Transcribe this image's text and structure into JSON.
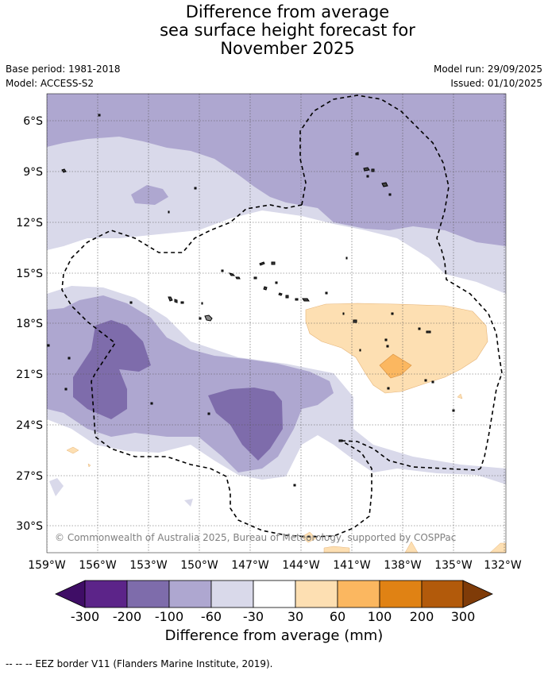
{
  "title": {
    "line1": "Difference from average",
    "line2": "sea surface height forecast for",
    "line3": "November 2025"
  },
  "meta": {
    "base_period": "Base period: 1981-2018",
    "model": "Model: ACCESS-S2",
    "model_run": "Model run: 29/09/2025",
    "issued": "Issued: 01/10/2025"
  },
  "map": {
    "copyright": "© Commonwealth of Australia 2025, Bureau of Meteorology, supported by COSPPac",
    "lat_labels": [
      "6°S",
      "9°S",
      "12°S",
      "15°S",
      "18°S",
      "21°S",
      "24°S",
      "27°S",
      "30°S"
    ],
    "lon_labels": [
      "159°W",
      "156°W",
      "153°W",
      "150°W",
      "147°W",
      "144°W",
      "141°W",
      "138°W",
      "135°W",
      "132°W"
    ]
  },
  "colorbar": {
    "title": "Difference from average (mm)",
    "tick_labels": [
      "-300",
      "-200",
      "-100",
      "-60",
      "-30",
      "30",
      "60",
      "100",
      "200",
      "300"
    ],
    "colors": [
      "#3f0d66",
      "#5c2489",
      "#7e6cab",
      "#aea7d0",
      "#d9d9ea",
      "#ffffff",
      "#fddfb2",
      "#fbb760",
      "#e08214",
      "#b25a0b",
      "#7f3b08"
    ]
  },
  "eez_note": "--  --  -- EEZ border V11 (Flanders Marine Institute, 2019)."
}
